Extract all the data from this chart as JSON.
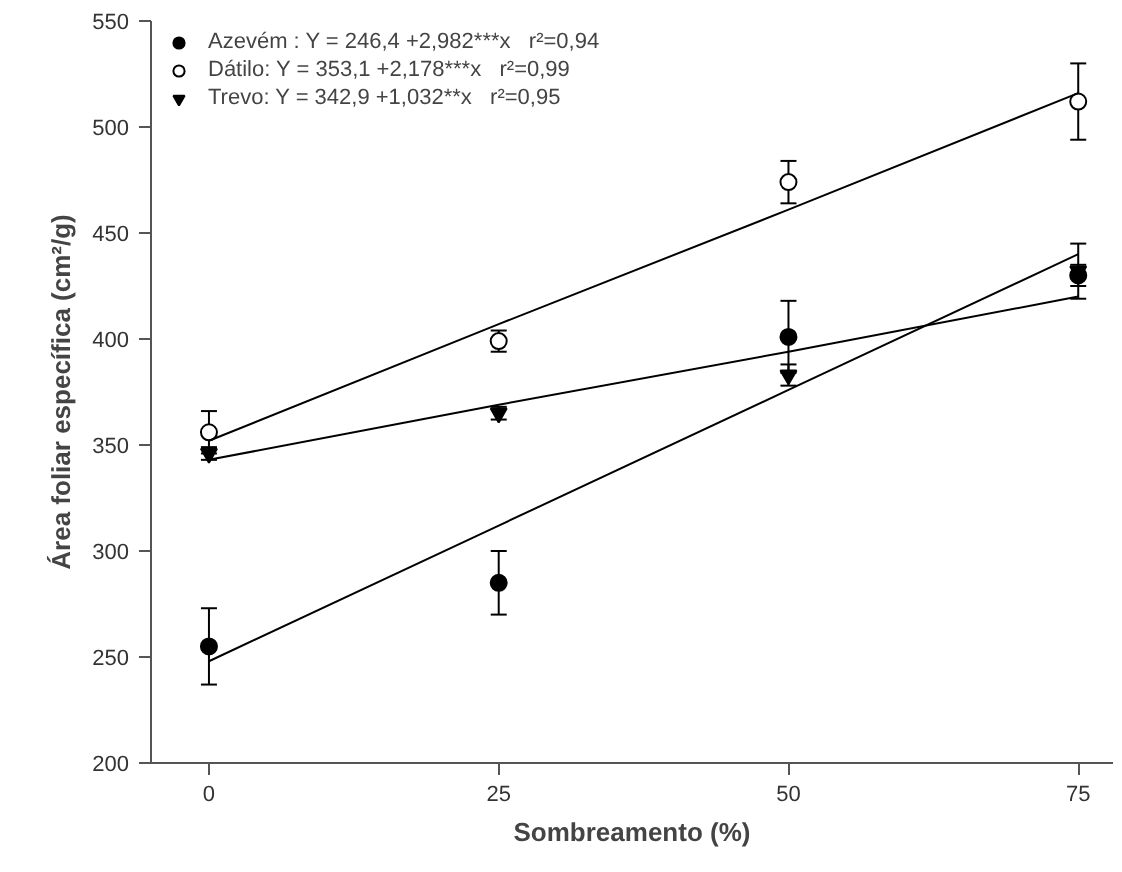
{
  "chart_data": {
    "type": "scatter",
    "xlabel": "Sombreamento (%)",
    "ylabel": "Área foliar específica (cm²/g)",
    "x": [
      0,
      25,
      50,
      75
    ],
    "xlim": [
      -5,
      78
    ],
    "xticks": [
      0,
      25,
      50,
      75
    ],
    "ylim": [
      200,
      550
    ],
    "yticks": [
      200,
      250,
      300,
      350,
      400,
      450,
      500,
      550
    ],
    "grid": false,
    "legend": "top left",
    "series": [
      {
        "name": "Azevém : Y = 246,4 +2,982***x   r²=0,94",
        "color": "#000000",
        "marker": "circle",
        "values": [
          255,
          285,
          401,
          430
        ],
        "errors": [
          18,
          15,
          17,
          5
        ]
      },
      {
        "name": "Dátilo: Y = 353,1 +2,178***x   r²=0,99",
        "color": "#ffffff",
        "marker": "circle",
        "values": [
          356,
          399,
          474,
          512
        ],
        "errors": [
          10,
          5,
          10,
          18
        ]
      },
      {
        "name": "Trevo: Y = 342,9 +1,032**x   r²=0,95",
        "color": "#000000",
        "marker": "triangle",
        "values": [
          346,
          365,
          383,
          432
        ],
        "errors": [
          3,
          3,
          5,
          13
        ]
      },
      {
        "type": "line",
        "color": "#000000",
        "marker": "none",
        "values": [
          248,
          312,
          376,
          440
        ]
      },
      {
        "type": "line",
        "color": "#000000",
        "marker": "none",
        "values": [
          352,
          407,
          461,
          516
        ]
      },
      {
        "type": "line",
        "color": "#000000",
        "marker": "none",
        "values": [
          343,
          369,
          394,
          420
        ]
      }
    ]
  }
}
